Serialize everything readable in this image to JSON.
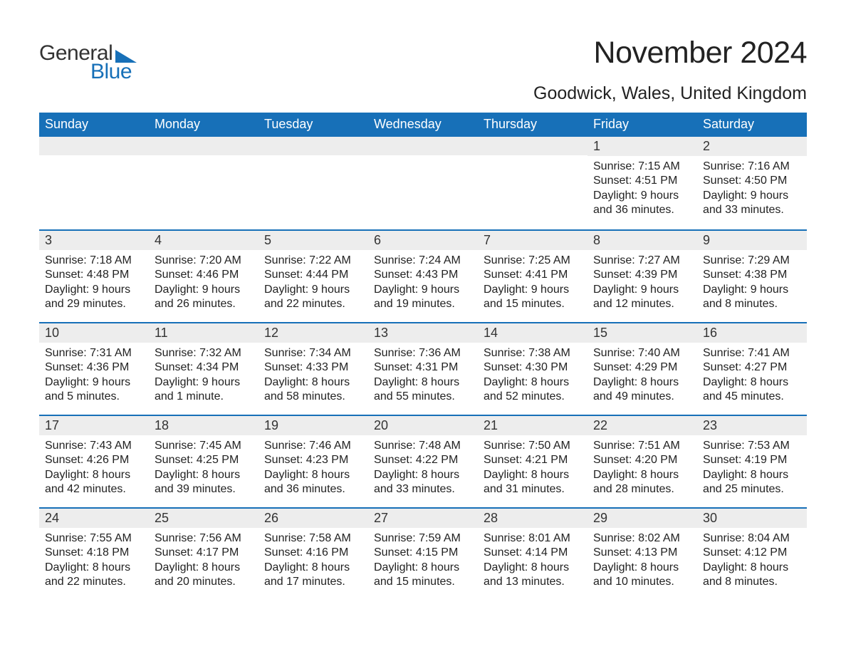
{
  "logo": {
    "text1": "General",
    "text2": "Blue"
  },
  "title": "November 2024",
  "location": "Goodwick, Wales, United Kingdom",
  "colors": {
    "header_bg": "#1770b8",
    "header_text": "#ffffff",
    "daynum_bg": "#ededed",
    "body_text": "#222222",
    "page_bg": "#ffffff",
    "logo_dark": "#333333",
    "logo_blue": "#1770b8",
    "week_border": "#1770b8"
  },
  "fonts": {
    "title_size": 43,
    "location_size": 25,
    "header_cell_size": 18,
    "daynum_size": 18,
    "body_size": 16
  },
  "day_names": [
    "Sunday",
    "Monday",
    "Tuesday",
    "Wednesday",
    "Thursday",
    "Friday",
    "Saturday"
  ],
  "labels": {
    "sunrise": "Sunrise:",
    "sunset": "Sunset:",
    "daylight": "Daylight:"
  },
  "weeks": [
    [
      null,
      null,
      null,
      null,
      null,
      {
        "d": "1",
        "sr": "7:15 AM",
        "ss": "4:51 PM",
        "dl": "9 hours and 36 minutes."
      },
      {
        "d": "2",
        "sr": "7:16 AM",
        "ss": "4:50 PM",
        "dl": "9 hours and 33 minutes."
      }
    ],
    [
      {
        "d": "3",
        "sr": "7:18 AM",
        "ss": "4:48 PM",
        "dl": "9 hours and 29 minutes."
      },
      {
        "d": "4",
        "sr": "7:20 AM",
        "ss": "4:46 PM",
        "dl": "9 hours and 26 minutes."
      },
      {
        "d": "5",
        "sr": "7:22 AM",
        "ss": "4:44 PM",
        "dl": "9 hours and 22 minutes."
      },
      {
        "d": "6",
        "sr": "7:24 AM",
        "ss": "4:43 PM",
        "dl": "9 hours and 19 minutes."
      },
      {
        "d": "7",
        "sr": "7:25 AM",
        "ss": "4:41 PM",
        "dl": "9 hours and 15 minutes."
      },
      {
        "d": "8",
        "sr": "7:27 AM",
        "ss": "4:39 PM",
        "dl": "9 hours and 12 minutes."
      },
      {
        "d": "9",
        "sr": "7:29 AM",
        "ss": "4:38 PM",
        "dl": "9 hours and 8 minutes."
      }
    ],
    [
      {
        "d": "10",
        "sr": "7:31 AM",
        "ss": "4:36 PM",
        "dl": "9 hours and 5 minutes."
      },
      {
        "d": "11",
        "sr": "7:32 AM",
        "ss": "4:34 PM",
        "dl": "9 hours and 1 minute."
      },
      {
        "d": "12",
        "sr": "7:34 AM",
        "ss": "4:33 PM",
        "dl": "8 hours and 58 minutes."
      },
      {
        "d": "13",
        "sr": "7:36 AM",
        "ss": "4:31 PM",
        "dl": "8 hours and 55 minutes."
      },
      {
        "d": "14",
        "sr": "7:38 AM",
        "ss": "4:30 PM",
        "dl": "8 hours and 52 minutes."
      },
      {
        "d": "15",
        "sr": "7:40 AM",
        "ss": "4:29 PM",
        "dl": "8 hours and 49 minutes."
      },
      {
        "d": "16",
        "sr": "7:41 AM",
        "ss": "4:27 PM",
        "dl": "8 hours and 45 minutes."
      }
    ],
    [
      {
        "d": "17",
        "sr": "7:43 AM",
        "ss": "4:26 PM",
        "dl": "8 hours and 42 minutes."
      },
      {
        "d": "18",
        "sr": "7:45 AM",
        "ss": "4:25 PM",
        "dl": "8 hours and 39 minutes."
      },
      {
        "d": "19",
        "sr": "7:46 AM",
        "ss": "4:23 PM",
        "dl": "8 hours and 36 minutes."
      },
      {
        "d": "20",
        "sr": "7:48 AM",
        "ss": "4:22 PM",
        "dl": "8 hours and 33 minutes."
      },
      {
        "d": "21",
        "sr": "7:50 AM",
        "ss": "4:21 PM",
        "dl": "8 hours and 31 minutes."
      },
      {
        "d": "22",
        "sr": "7:51 AM",
        "ss": "4:20 PM",
        "dl": "8 hours and 28 minutes."
      },
      {
        "d": "23",
        "sr": "7:53 AM",
        "ss": "4:19 PM",
        "dl": "8 hours and 25 minutes."
      }
    ],
    [
      {
        "d": "24",
        "sr": "7:55 AM",
        "ss": "4:18 PM",
        "dl": "8 hours and 22 minutes."
      },
      {
        "d": "25",
        "sr": "7:56 AM",
        "ss": "4:17 PM",
        "dl": "8 hours and 20 minutes."
      },
      {
        "d": "26",
        "sr": "7:58 AM",
        "ss": "4:16 PM",
        "dl": "8 hours and 17 minutes."
      },
      {
        "d": "27",
        "sr": "7:59 AM",
        "ss": "4:15 PM",
        "dl": "8 hours and 15 minutes."
      },
      {
        "d": "28",
        "sr": "8:01 AM",
        "ss": "4:14 PM",
        "dl": "8 hours and 13 minutes."
      },
      {
        "d": "29",
        "sr": "8:02 AM",
        "ss": "4:13 PM",
        "dl": "8 hours and 10 minutes."
      },
      {
        "d": "30",
        "sr": "8:04 AM",
        "ss": "4:12 PM",
        "dl": "8 hours and 8 minutes."
      }
    ]
  ]
}
